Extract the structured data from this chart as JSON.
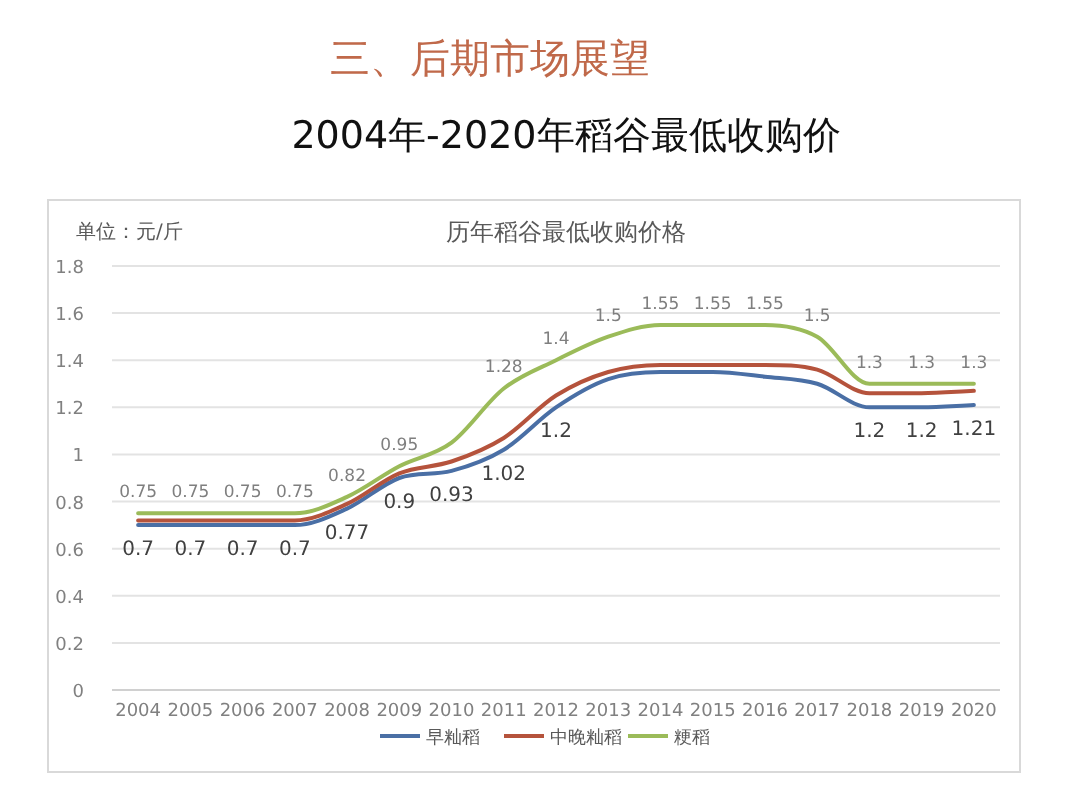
{
  "chart_data": {
    "type": "line",
    "title": "2004年-2020年稻谷最低收购价",
    "subtitle": "历年稻谷最低收购价格",
    "annotations": [
      "三、后期市场展望",
      "单位：元/斤"
    ],
    "categories": [
      "2004",
      "2005",
      "2006",
      "2007",
      "2008",
      "2009",
      "2010",
      "2011",
      "2012",
      "2013",
      "2014",
      "2015",
      "2016",
      "2017",
      "2018",
      "2019",
      "2020"
    ],
    "series": [
      {
        "name": "早籼稻",
        "color": "#4a6fa5",
        "values": [
          0.7,
          0.7,
          0.7,
          0.7,
          0.77,
          0.9,
          0.93,
          1.02,
          1.2,
          1.32,
          1.35,
          1.35,
          1.33,
          1.3,
          1.2,
          1.2,
          1.21
        ],
        "value_labels": [
          "0.7",
          "0.7",
          "0.7",
          "0.7",
          "0.77",
          "0.9",
          "0.93",
          "1.02",
          "1.2",
          null,
          null,
          null,
          null,
          null,
          "1.2",
          "1.2",
          "1.21"
        ]
      },
      {
        "name": "中晚籼稻",
        "color": "#b5533c",
        "values": [
          0.72,
          0.72,
          0.72,
          0.72,
          0.79,
          0.92,
          0.97,
          1.07,
          1.25,
          1.35,
          1.38,
          1.38,
          1.38,
          1.36,
          1.26,
          1.26,
          1.27
        ]
      },
      {
        "name": "粳稻",
        "color": "#9bbb59",
        "values": [
          0.75,
          0.75,
          0.75,
          0.75,
          0.82,
          0.95,
          1.05,
          1.28,
          1.4,
          1.5,
          1.55,
          1.55,
          1.55,
          1.5,
          1.3,
          1.3,
          1.3
        ],
        "value_labels": [
          "0.75",
          "0.75",
          "0.75",
          "0.75",
          "0.82",
          "0.95",
          null,
          "1.28",
          "1.4",
          "1.5",
          "1.55",
          "1.55",
          "1.55",
          "1.5",
          "1.3",
          "1.3",
          "1.3"
        ]
      }
    ],
    "ylim": [
      0,
      1.8
    ],
    "yticks": [
      0,
      0.2,
      0.4,
      0.6,
      0.8,
      1,
      1.2,
      1.4,
      1.6,
      1.8
    ],
    "grid": "y",
    "legend": "bottom",
    "marker": "none",
    "line_style": "solid"
  }
}
